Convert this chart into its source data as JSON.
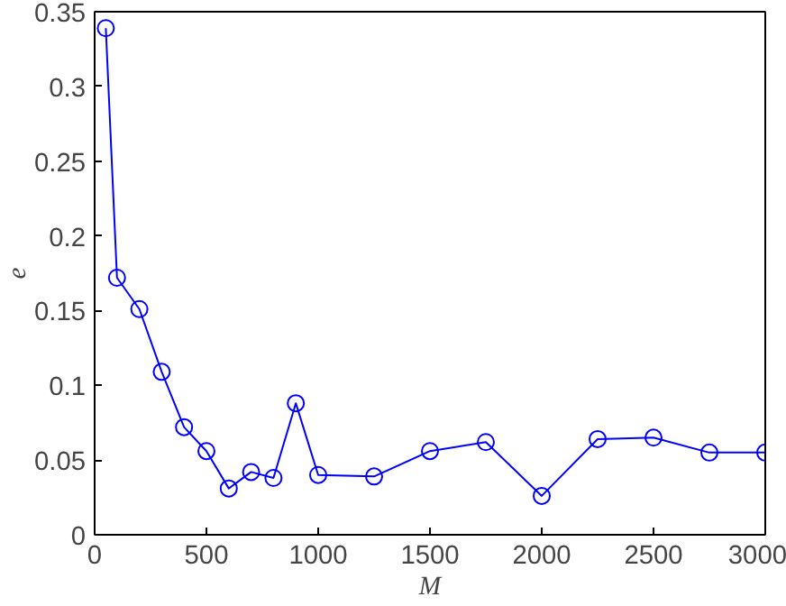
{
  "chart_data": {
    "type": "line",
    "xlabel": "M",
    "ylabel": "e",
    "x": [
      50,
      100,
      200,
      300,
      400,
      500,
      600,
      700,
      800,
      900,
      1000,
      1250,
      1500,
      1750,
      2000,
      2250,
      2500,
      2750,
      3000
    ],
    "series": [
      {
        "color": "#0000ff",
        "values": [
          0.339,
          0.172,
          0.151,
          0.109,
          0.072,
          0.056,
          0.031,
          0.042,
          0.038,
          0.088,
          0.04,
          0.039,
          0.056,
          0.062,
          0.026,
          0.064,
          0.065,
          0.055,
          0.055
        ]
      }
    ],
    "xlim": [
      0,
      3000
    ],
    "ylim": [
      0,
      0.35
    ],
    "xticks": [
      0,
      500,
      1000,
      1500,
      2000,
      2500,
      3000
    ],
    "yticks": [
      0,
      0.05,
      0.1,
      0.15,
      0.2,
      0.25,
      0.3,
      0.35
    ],
    "marker": "circle",
    "line_style": "solid",
    "grid": false
  }
}
